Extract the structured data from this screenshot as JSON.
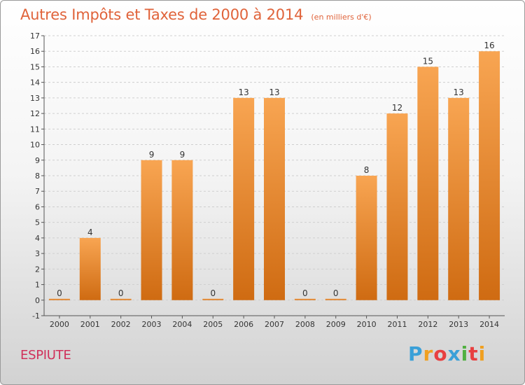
{
  "chart_data": {
    "type": "bar",
    "title": "Autres Impôts et Taxes de 2000 à 2014",
    "subtitle": "(en milliers d'€)",
    "categories": [
      "2000",
      "2001",
      "2002",
      "2003",
      "2004",
      "2005",
      "2006",
      "2007",
      "2008",
      "2009",
      "2010",
      "2011",
      "2012",
      "2013",
      "2014"
    ],
    "values": [
      0,
      4,
      0,
      9,
      9,
      0,
      13,
      13,
      0,
      0,
      8,
      12,
      15,
      13,
      16
    ],
    "xlabel": "",
    "ylabel": "",
    "ylim": [
      -1,
      17
    ],
    "yticks": [
      -1,
      0,
      1,
      2,
      3,
      4,
      5,
      6,
      7,
      8,
      9,
      10,
      11,
      12,
      13,
      14,
      15,
      16,
      17
    ],
    "grid": true,
    "legend": "none",
    "bar_color": "#f08a2e"
  },
  "footer": {
    "commune": "ESPIUTE",
    "logo_letters": [
      "P",
      "r",
      "o",
      "x",
      "i",
      "t",
      "i"
    ],
    "logo_colors": [
      "#3aa0d8",
      "#f0a020",
      "#e84040",
      "#3aa0d8",
      "#50b040",
      "#e84040",
      "#f0a020"
    ]
  }
}
